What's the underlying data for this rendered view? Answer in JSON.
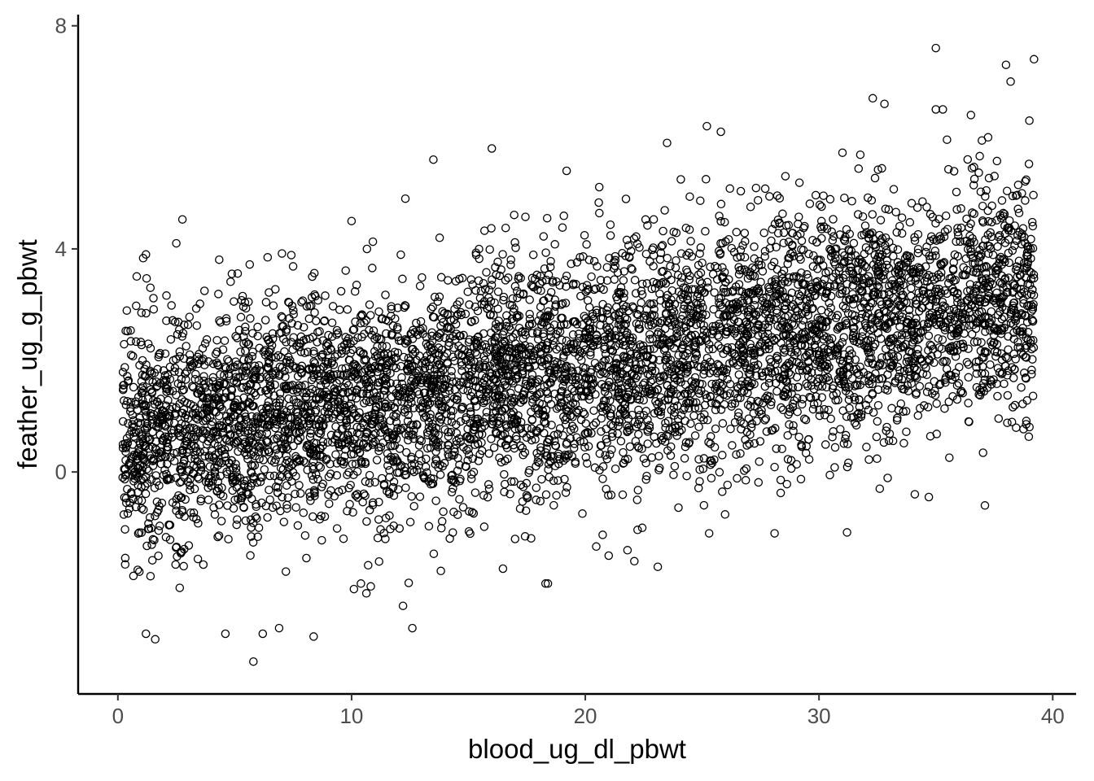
{
  "chart_data": {
    "type": "scatter",
    "title": "",
    "xlabel": "blood_ug_dl_pbwt",
    "ylabel": "feather_ug_g_pbwt",
    "xlim": [
      -1.7,
      41.0
    ],
    "ylim": [
      -3.98,
      8.2
    ],
    "x_ticks": [
      0,
      10,
      20,
      30,
      40
    ],
    "y_ticks": [
      0,
      4,
      8
    ],
    "x_tick_labels": [
      "0",
      "10",
      "20",
      "30",
      "40"
    ],
    "y_tick_labels": [
      "0",
      "4",
      "8"
    ],
    "grid": false,
    "legend": "none",
    "marker": "open-circle",
    "point_color": "#000000",
    "n_points": 6000,
    "x_range": [
      0.2,
      39.2
    ],
    "trend": {
      "intercept": 0.55,
      "slope": 0.068
    },
    "residual_sd": 1.05,
    "notable_points": [
      {
        "x": 35.0,
        "y": 7.6
      },
      {
        "x": 39.2,
        "y": 7.4
      },
      {
        "x": 38.0,
        "y": 7.3
      },
      {
        "x": 38.2,
        "y": 7.0
      },
      {
        "x": 32.3,
        "y": 6.7
      },
      {
        "x": 32.8,
        "y": 6.6
      },
      {
        "x": 35.0,
        "y": 6.5
      },
      {
        "x": 35.3,
        "y": 6.5
      },
      {
        "x": 36.5,
        "y": 6.4
      },
      {
        "x": 39.0,
        "y": 6.3
      },
      {
        "x": 25.2,
        "y": 6.2
      },
      {
        "x": 25.8,
        "y": 6.1
      },
      {
        "x": 23.5,
        "y": 5.9
      },
      {
        "x": 16.0,
        "y": 5.8
      },
      {
        "x": 13.5,
        "y": 5.6
      },
      {
        "x": 19.2,
        "y": 5.4
      },
      {
        "x": 12.3,
        "y": 4.9
      },
      {
        "x": 10.0,
        "y": 4.5
      },
      {
        "x": 2.5,
        "y": 4.1
      },
      {
        "x": 1.2,
        "y": 3.9
      },
      {
        "x": 5.8,
        "y": -3.4
      },
      {
        "x": 1.6,
        "y": -3.0
      },
      {
        "x": 1.2,
        "y": -2.9
      },
      {
        "x": 4.6,
        "y": -2.9
      },
      {
        "x": 6.2,
        "y": -2.9
      },
      {
        "x": 6.9,
        "y": -2.8
      },
      {
        "x": 12.6,
        "y": -2.8
      },
      {
        "x": 12.2,
        "y": -2.4
      },
      {
        "x": 18.3,
        "y": -2.0
      },
      {
        "x": 18.4,
        "y": -2.0
      },
      {
        "x": 10.1,
        "y": -2.1
      },
      {
        "x": 10.4,
        "y": -2.0
      },
      {
        "x": 23.1,
        "y": -1.7
      },
      {
        "x": 21.0,
        "y": -1.5
      },
      {
        "x": 22.1,
        "y": -1.6
      },
      {
        "x": 25.3,
        "y": -1.1
      },
      {
        "x": 28.1,
        "y": -1.1
      },
      {
        "x": 37.1,
        "y": -0.6
      },
      {
        "x": 32.6,
        "y": -0.3
      },
      {
        "x": 34.1,
        "y": -0.4
      },
      {
        "x": 34.7,
        "y": -0.45
      }
    ]
  }
}
